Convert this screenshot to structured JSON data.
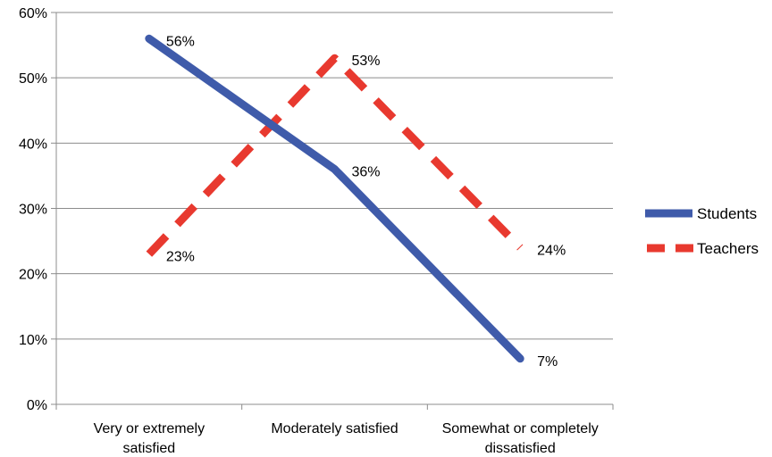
{
  "chart_data": {
    "type": "line",
    "categories": [
      [
        "Very or extremely",
        "satisfied"
      ],
      [
        "Moderately satisfied"
      ],
      [
        "Somewhat or completely",
        "dissatisfied"
      ]
    ],
    "series": [
      {
        "name": "Students",
        "values": [
          56,
          36,
          7
        ],
        "labels": [
          "56%",
          "36%",
          "7%"
        ],
        "color": "#3f5baa",
        "style": "solid"
      },
      {
        "name": "Teachers",
        "values": [
          23,
          53,
          24
        ],
        "labels": [
          "23%",
          "53%",
          "24%"
        ],
        "color": "#e8392f",
        "style": "dashed"
      }
    ],
    "y_ticks": [
      "0%",
      "10%",
      "20%",
      "30%",
      "40%",
      "50%",
      "60%"
    ],
    "ylim": [
      0,
      60
    ],
    "grid": true,
    "legend_position": "right"
  }
}
